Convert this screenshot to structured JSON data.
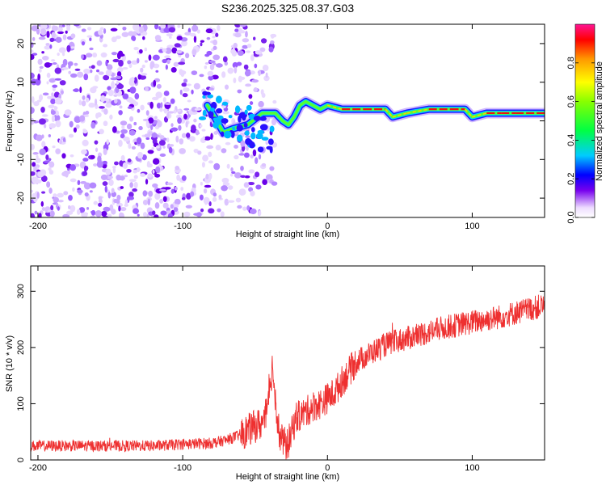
{
  "title": "S236.2025.325.08.37.G03",
  "chart_data": [
    {
      "type": "heatmap",
      "xlabel": "Height of straight line (km)",
      "ylabel": "Frequency (Hz)",
      "xlim": [
        -205,
        150
      ],
      "ylim": [
        -25,
        25
      ],
      "xticks": [
        -200,
        -100,
        0,
        100
      ],
      "yticks": [
        20,
        10,
        0,
        -10,
        -20
      ],
      "colorbar": {
        "label": "Normalized spectral amplitude",
        "range": [
          0,
          1
        ],
        "ticks": [
          0.0,
          0.2,
          0.4,
          0.6,
          0.8
        ]
      },
      "ridge": [
        {
          "x": -83,
          "y": 4
        },
        {
          "x": -78,
          "y": 1
        },
        {
          "x": -72,
          "y": -3
        },
        {
          "x": -65,
          "y": -2
        },
        {
          "x": -55,
          "y": -1
        },
        {
          "x": -45,
          "y": 2
        },
        {
          "x": -36,
          "y": 2
        },
        {
          "x": -31,
          "y": 0
        },
        {
          "x": -27,
          "y": -1
        },
        {
          "x": -23,
          "y": 1
        },
        {
          "x": -19,
          "y": 4
        },
        {
          "x": -15,
          "y": 5
        },
        {
          "x": -10,
          "y": 4
        },
        {
          "x": -5,
          "y": 3
        },
        {
          "x": 0,
          "y": 4
        },
        {
          "x": 10,
          "y": 3
        },
        {
          "x": 25,
          "y": 3
        },
        {
          "x": 40,
          "y": 3
        },
        {
          "x": 45,
          "y": 1
        },
        {
          "x": 55,
          "y": 2
        },
        {
          "x": 70,
          "y": 3
        },
        {
          "x": 85,
          "y": 3
        },
        {
          "x": 95,
          "y": 3
        },
        {
          "x": 100,
          "y": 1
        },
        {
          "x": 110,
          "y": 2
        },
        {
          "x": 120,
          "y": 2
        },
        {
          "x": 130,
          "y": 2
        },
        {
          "x": 150,
          "y": 2
        }
      ]
    },
    {
      "type": "line",
      "xlabel": "Height of straight line (km)",
      "ylabel": "SNR (10 * v/v)",
      "xlim": [
        -205,
        150
      ],
      "ylim": [
        0,
        345
      ],
      "xticks": [
        -200,
        -100,
        0,
        100
      ],
      "yticks": [
        0,
        100,
        200,
        300
      ],
      "series": [
        {
          "name": "SNR",
          "color": "#ee3030",
          "points": [
            {
              "x": -205,
              "y": 25
            },
            {
              "x": -180,
              "y": 25
            },
            {
              "x": -150,
              "y": 25
            },
            {
              "x": -120,
              "y": 25
            },
            {
              "x": -100,
              "y": 28
            },
            {
              "x": -80,
              "y": 30
            },
            {
              "x": -70,
              "y": 35
            },
            {
              "x": -60,
              "y": 45
            },
            {
              "x": -50,
              "y": 60
            },
            {
              "x": -45,
              "y": 65
            },
            {
              "x": -41,
              "y": 90
            },
            {
              "x": -38,
              "y": 170
            },
            {
              "x": -36,
              "y": 110
            },
            {
              "x": -33,
              "y": 40
            },
            {
              "x": -28,
              "y": 25
            },
            {
              "x": -25,
              "y": 45
            },
            {
              "x": -22,
              "y": 75
            },
            {
              "x": -15,
              "y": 85
            },
            {
              "x": -10,
              "y": 95
            },
            {
              "x": -5,
              "y": 100
            },
            {
              "x": 0,
              "y": 110
            },
            {
              "x": 5,
              "y": 120
            },
            {
              "x": 10,
              "y": 140
            },
            {
              "x": 20,
              "y": 175
            },
            {
              "x": 30,
              "y": 190
            },
            {
              "x": 40,
              "y": 205
            },
            {
              "x": 60,
              "y": 220
            },
            {
              "x": 80,
              "y": 235
            },
            {
              "x": 100,
              "y": 245
            },
            {
              "x": 120,
              "y": 255
            },
            {
              "x": 135,
              "y": 265
            },
            {
              "x": 150,
              "y": 275
            }
          ]
        }
      ]
    }
  ]
}
